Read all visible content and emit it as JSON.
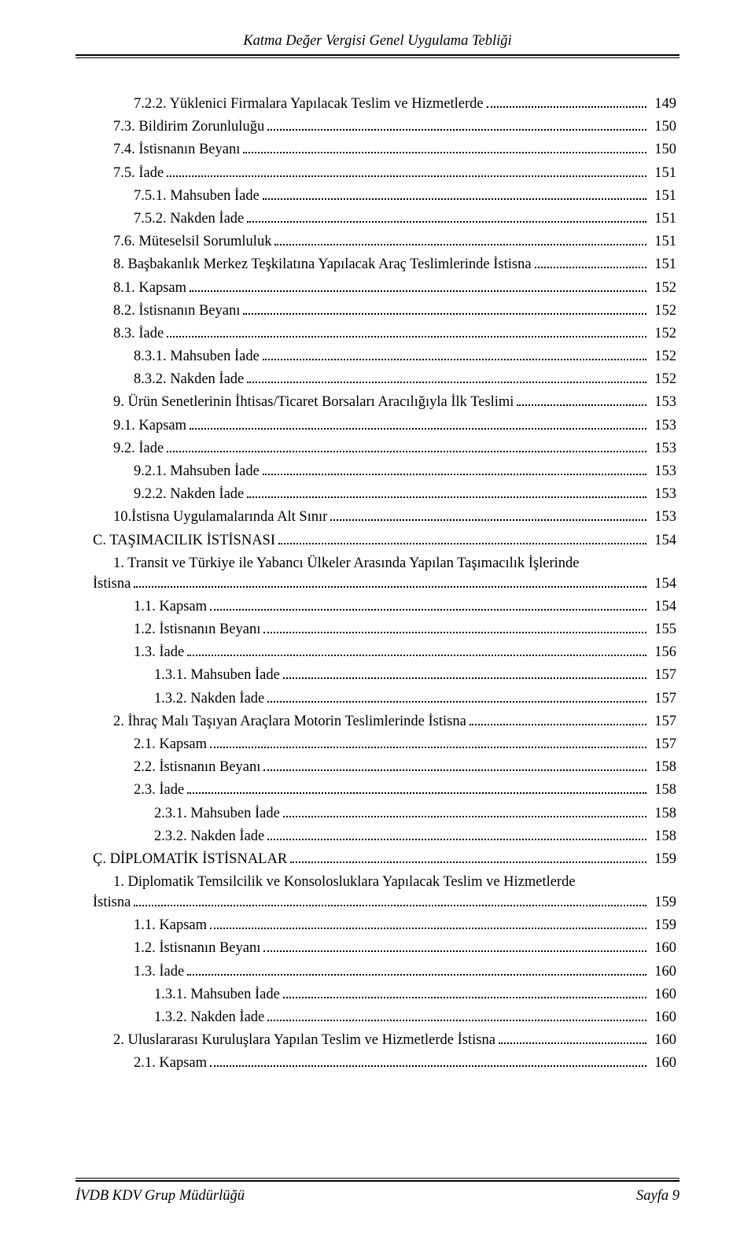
{
  "header": "Katma Değer Vergisi Genel Uygulama Tebliği",
  "footer_left": "İVDB KDV Grup Müdürlüğü",
  "footer_right": "Sayfa 9",
  "toc": [
    {
      "indent": 2,
      "title": "7.2.2. Yüklenici Firmalara Yapılacak Teslim ve Hizmetlerde",
      "page": "149"
    },
    {
      "indent": 1,
      "title": "7.3. Bildirim Zorunluluğu",
      "page": "150"
    },
    {
      "indent": 1,
      "title": "7.4. İstisnanın Beyanı",
      "page": "150"
    },
    {
      "indent": 1,
      "title": "7.5. İade",
      "page": "151"
    },
    {
      "indent": 2,
      "title": "7.5.1. Mahsuben İade",
      "page": "151"
    },
    {
      "indent": 2,
      "title": "7.5.2. Nakden İade",
      "page": "151"
    },
    {
      "indent": 1,
      "title": "7.6. Müteselsil Sorumluluk",
      "page": "151"
    },
    {
      "indent": 1,
      "title": "8. Başbakanlık Merkez Teşkilatına Yapılacak Araç Teslimlerinde İstisna",
      "page": "151"
    },
    {
      "indent": 1,
      "title": "8.1. Kapsam",
      "page": "152"
    },
    {
      "indent": 1,
      "title": "8.2. İstisnanın Beyanı",
      "page": "152"
    },
    {
      "indent": 1,
      "title": "8.3. İade",
      "page": "152"
    },
    {
      "indent": 2,
      "title": "8.3.1. Mahsuben İade",
      "page": "152"
    },
    {
      "indent": 2,
      "title": "8.3.2. Nakden İade",
      "page": "152"
    },
    {
      "indent": 1,
      "title": "9. Ürün Senetlerinin İhtisas/Ticaret Borsaları Aracılığıyla İlk Teslimi",
      "page": "153"
    },
    {
      "indent": 1,
      "title": "9.1. Kapsam",
      "page": "153"
    },
    {
      "indent": 1,
      "title": "9.2. İade",
      "page": "153"
    },
    {
      "indent": 2,
      "title": "9.2.1. Mahsuben İade",
      "page": "153"
    },
    {
      "indent": 2,
      "title": "9.2.2. Nakden İade",
      "page": "153"
    },
    {
      "indent": 1,
      "title": "10.İstisna Uygulamalarında Alt Sınır",
      "page": "153"
    },
    {
      "indent": 0,
      "title": "C. TAŞIMACILIK İSTİSNASI",
      "page": "154"
    },
    {
      "indent": 1,
      "wrap": true,
      "title1": "1. Transit ve Türkiye ile Yabancı Ülkeler Arasında Yapılan Taşımacılık İşlerinde",
      "title2": "İstisna",
      "page": "154"
    },
    {
      "indent": 2,
      "title": "1.1. Kapsam",
      "page": "154"
    },
    {
      "indent": 2,
      "title": "1.2. İstisnanın Beyanı",
      "page": "155"
    },
    {
      "indent": 2,
      "title": "1.3. İade",
      "page": "156"
    },
    {
      "indent": 3,
      "title": "1.3.1. Mahsuben İade",
      "page": "157"
    },
    {
      "indent": 3,
      "title": "1.3.2. Nakden İade",
      "page": "157"
    },
    {
      "indent": 1,
      "title": "2. İhraç Malı Taşıyan Araçlara Motorin Teslimlerinde İstisna",
      "page": "157"
    },
    {
      "indent": 2,
      "title": "2.1. Kapsam",
      "page": "157"
    },
    {
      "indent": 2,
      "title": "2.2. İstisnanın Beyanı",
      "page": "158"
    },
    {
      "indent": 2,
      "title": "2.3. İade",
      "page": "158"
    },
    {
      "indent": 3,
      "title": "2.3.1. Mahsuben İade",
      "page": "158"
    },
    {
      "indent": 3,
      "title": "2.3.2. Nakden İade",
      "page": "158"
    },
    {
      "indent": 0,
      "title": "Ç. DİPLOMATİK İSTİSNALAR",
      "page": "159"
    },
    {
      "indent": 1,
      "wrap": true,
      "title1": "1. Diplomatik Temsilcilik ve Konsolosluklara Yapılacak Teslim ve Hizmetlerde",
      "title2": "İstisna",
      "page": "159"
    },
    {
      "indent": 2,
      "title": "1.1. Kapsam",
      "page": "159"
    },
    {
      "indent": 2,
      "title": "1.2. İstisnanın Beyanı",
      "page": "160"
    },
    {
      "indent": 2,
      "title": "1.3. İade",
      "page": "160"
    },
    {
      "indent": 3,
      "title": "1.3.1. Mahsuben İade",
      "page": "160"
    },
    {
      "indent": 3,
      "title": "1.3.2. Nakden İade",
      "page": "160"
    },
    {
      "indent": 1,
      "title": "2. Uluslararası Kuruluşlara Yapılan Teslim ve Hizmetlerde İstisna",
      "page": "160"
    },
    {
      "indent": 2,
      "title": "2.1. Kapsam",
      "page": "160"
    }
  ]
}
